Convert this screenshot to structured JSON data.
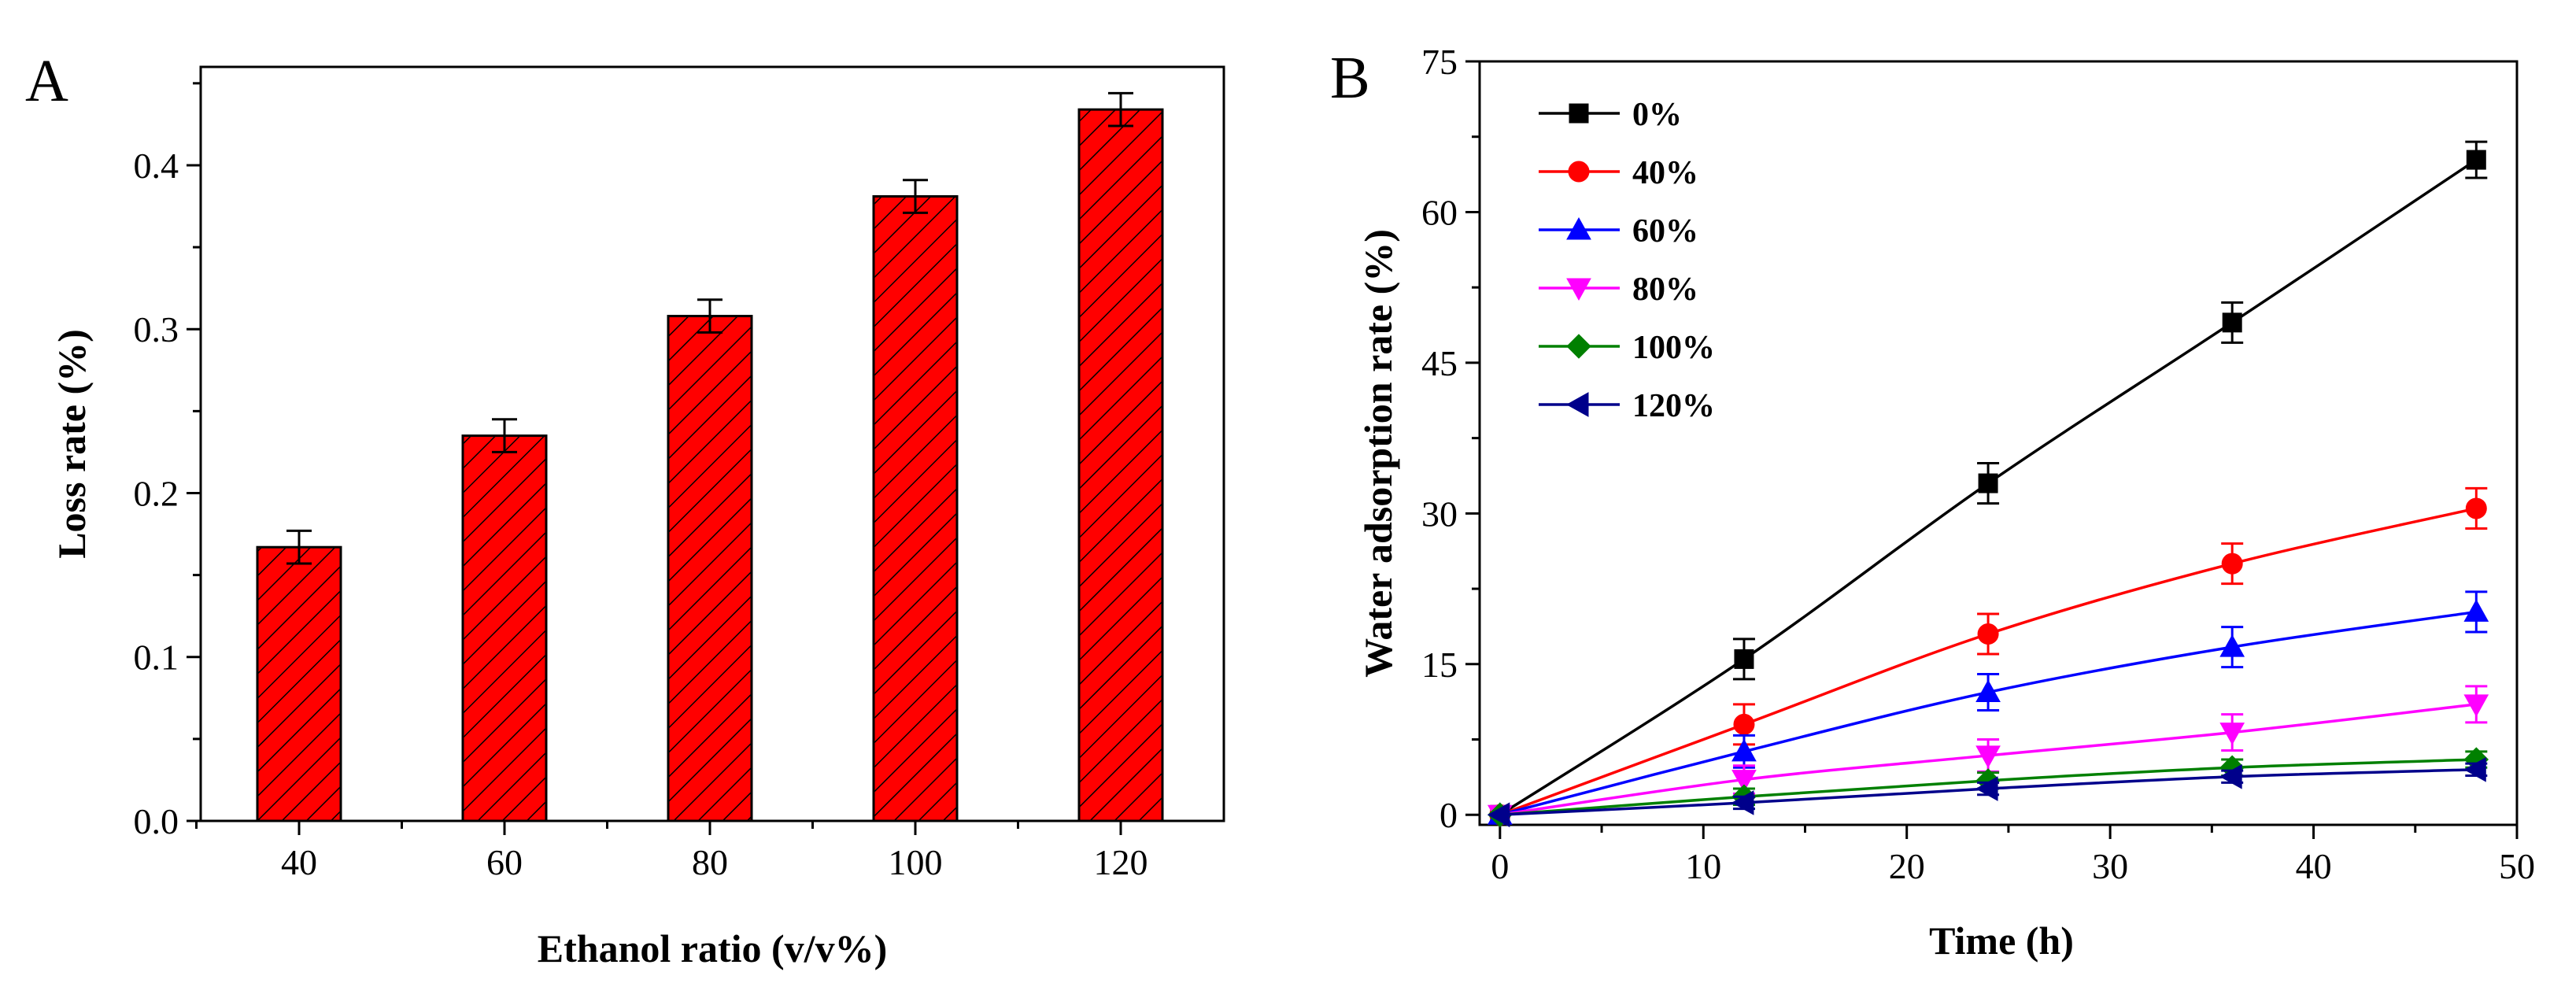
{
  "chart_data": [
    {
      "panel": "A",
      "type": "bar",
      "xlabel": "Ethanol ratio (v/v%)",
      "ylabel": "Loss rate (%)",
      "categories": [
        "40",
        "60",
        "80",
        "100",
        "120"
      ],
      "values": [
        0.167,
        0.235,
        0.308,
        0.381,
        0.434
      ],
      "errors": [
        0.01,
        0.01,
        0.01,
        0.01,
        0.01
      ],
      "ylim": [
        0.0,
        0.46
      ],
      "yticks": [
        0.0,
        0.1,
        0.2,
        0.3,
        0.4
      ],
      "ytick_labels": [
        "0.0",
        "0.1",
        "0.2",
        "0.3",
        "0.4"
      ],
      "bar_color": "#ff0000",
      "hatch": "diagonal"
    },
    {
      "panel": "B",
      "type": "line",
      "xlabel": "Time (h)",
      "ylabel": "Water adsorption rate (%)",
      "xlim": [
        -1,
        50
      ],
      "ylim": [
        -1,
        75
      ],
      "xticks": [
        0,
        10,
        20,
        30,
        40,
        50
      ],
      "xtick_labels": [
        "0",
        "10",
        "20",
        "30",
        "40",
        "50"
      ],
      "yticks": [
        0,
        15,
        30,
        45,
        60,
        75
      ],
      "ytick_labels": [
        "0",
        "15",
        "30",
        "45",
        "60",
        "75"
      ],
      "legend_position": "top-left",
      "x": [
        0,
        12,
        24,
        36,
        48
      ],
      "series": [
        {
          "name": "0%",
          "color": "#000000",
          "marker": "square",
          "values": [
            0,
            15.5,
            33,
            49,
            65.2
          ],
          "errors": [
            0,
            2.0,
            2.0,
            2.0,
            1.8
          ]
        },
        {
          "name": "40%",
          "color": "#ff0000",
          "marker": "circle",
          "values": [
            0,
            9,
            18,
            25,
            30.5
          ],
          "errors": [
            0,
            2.0,
            2.0,
            2.0,
            2.0
          ]
        },
        {
          "name": "60%",
          "color": "#0000ff",
          "marker": "triangle-up",
          "values": [
            0,
            6.3,
            12.2,
            16.7,
            20.2
          ],
          "errors": [
            0,
            1.6,
            1.8,
            2.0,
            2.0
          ]
        },
        {
          "name": "80%",
          "color": "#ff00ff",
          "marker": "triangle-down",
          "values": [
            0,
            3.5,
            5.9,
            8.2,
            11
          ],
          "errors": [
            0,
            1.4,
            1.6,
            1.8,
            1.8
          ]
        },
        {
          "name": "100%",
          "color": "#008000",
          "marker": "diamond",
          "values": [
            0,
            1.8,
            3.4,
            4.7,
            5.5
          ],
          "errors": [
            0,
            0.8,
            0.8,
            0.8,
            0.8
          ]
        },
        {
          "name": "120%",
          "color": "#00008b",
          "marker": "triangle-left",
          "values": [
            0,
            1.2,
            2.6,
            3.8,
            4.5
          ],
          "errors": [
            0,
            0.6,
            0.6,
            0.6,
            0.6
          ]
        }
      ]
    }
  ]
}
